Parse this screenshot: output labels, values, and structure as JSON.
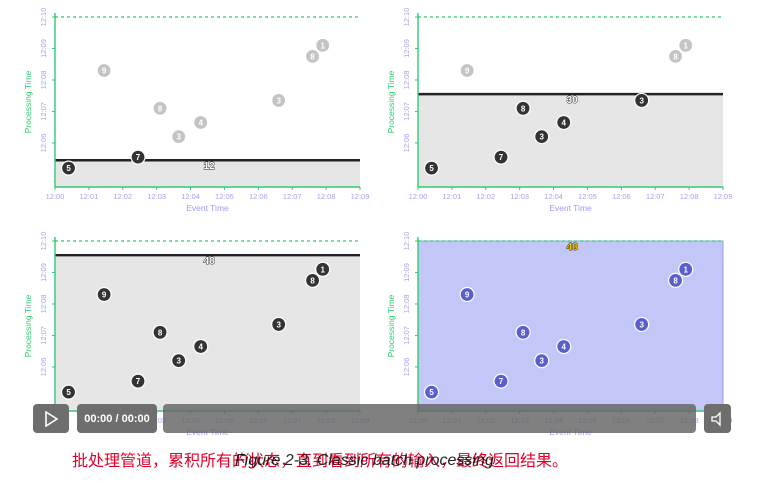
{
  "colors": {
    "axis": "#2ecc71",
    "tick_label": "#a3a3f0",
    "axis_title": "#8a8ae6",
    "x_axis_title": "#9c9cf0",
    "dot_active": "#333333",
    "dot_faded": "#c4c4c4",
    "shade_gray": "#e6e6e6",
    "shade_blue": "#c3c7f8",
    "blue_dot": "#5a5fd0",
    "caption_red": "#e4002b"
  },
  "chart_data": [
    {
      "type": "scatter",
      "xlabel": "Event Time",
      "ylabel": "Processing Time",
      "x_ticks": [
        "12:00",
        "12:01",
        "12:02",
        "12:03",
        "12:04",
        "12:05",
        "12:06",
        "12:07",
        "12:08",
        "12:09"
      ],
      "y_ticks": [
        "12:06",
        "12:07",
        "12:08",
        "12:09",
        "12:10"
      ],
      "shading": "gray",
      "watermark": 5.45,
      "sum_label": "12",
      "sum_x": 4.55,
      "points": [
        {
          "x": 0.4,
          "y": 5.2,
          "value": "5",
          "state": "active"
        },
        {
          "x": 2.45,
          "y": 5.55,
          "value": "7",
          "state": "active"
        },
        {
          "x": 1.45,
          "y": 8.3,
          "value": "9",
          "state": "faded"
        },
        {
          "x": 3.1,
          "y": 7.1,
          "value": "8",
          "state": "faded"
        },
        {
          "x": 3.65,
          "y": 6.2,
          "value": "3",
          "state": "faded"
        },
        {
          "x": 4.3,
          "y": 6.65,
          "value": "4",
          "state": "faded"
        },
        {
          "x": 6.6,
          "y": 7.35,
          "value": "3",
          "state": "faded"
        },
        {
          "x": 7.6,
          "y": 8.75,
          "value": "8",
          "state": "faded"
        },
        {
          "x": 7.9,
          "y": 9.1,
          "value": "1",
          "state": "faded"
        }
      ]
    },
    {
      "type": "scatter",
      "xlabel": "Event Time",
      "ylabel": "Processing Time",
      "x_ticks": [
        "12:00",
        "12:01",
        "12:02",
        "12:03",
        "12:04",
        "12:05",
        "12:06",
        "12:07",
        "12:08",
        "12:09"
      ],
      "y_ticks": [
        "12:06",
        "12:07",
        "12:08",
        "12:09",
        "12:10"
      ],
      "shading": "gray",
      "watermark": 7.55,
      "sum_label": "30",
      "sum_x": 4.55,
      "points": [
        {
          "x": 0.4,
          "y": 5.2,
          "value": "5",
          "state": "active"
        },
        {
          "x": 2.45,
          "y": 5.55,
          "value": "7",
          "state": "active"
        },
        {
          "x": 1.45,
          "y": 8.3,
          "value": "9",
          "state": "faded"
        },
        {
          "x": 3.1,
          "y": 7.1,
          "value": "8",
          "state": "active"
        },
        {
          "x": 3.65,
          "y": 6.2,
          "value": "3",
          "state": "active"
        },
        {
          "x": 4.3,
          "y": 6.65,
          "value": "4",
          "state": "active"
        },
        {
          "x": 6.6,
          "y": 7.35,
          "value": "3",
          "state": "active"
        },
        {
          "x": 7.6,
          "y": 8.75,
          "value": "8",
          "state": "faded"
        },
        {
          "x": 7.9,
          "y": 9.1,
          "value": "1",
          "state": "faded"
        }
      ]
    },
    {
      "type": "scatter",
      "xlabel": "Event Time",
      "ylabel": "Processing Time",
      "x_ticks": [
        "12:00",
        "12:01",
        "12:02",
        "12:03",
        "12:04",
        "12:05",
        "12:06",
        "12:07",
        "12:08",
        "12:09"
      ],
      "y_ticks": [
        "12:06",
        "12:07",
        "12:08",
        "12:09",
        "12:10"
      ],
      "shading": "gray",
      "watermark": 9.55,
      "sum_label": "48",
      "sum_x": 4.55,
      "points": [
        {
          "x": 0.4,
          "y": 5.2,
          "value": "5",
          "state": "active"
        },
        {
          "x": 2.45,
          "y": 5.55,
          "value": "7",
          "state": "active"
        },
        {
          "x": 1.45,
          "y": 8.3,
          "value": "9",
          "state": "active"
        },
        {
          "x": 3.1,
          "y": 7.1,
          "value": "8",
          "state": "active"
        },
        {
          "x": 3.65,
          "y": 6.2,
          "value": "3",
          "state": "active"
        },
        {
          "x": 4.3,
          "y": 6.65,
          "value": "4",
          "state": "active"
        },
        {
          "x": 6.6,
          "y": 7.35,
          "value": "3",
          "state": "active"
        },
        {
          "x": 7.6,
          "y": 8.75,
          "value": "8",
          "state": "active"
        },
        {
          "x": 7.9,
          "y": 9.1,
          "value": "1",
          "state": "active"
        }
      ]
    },
    {
      "type": "scatter",
      "xlabel": "Event Time",
      "ylabel": "Processing Time",
      "x_ticks": [
        "12:00",
        "12:01",
        "12:02",
        "12:03",
        "12:04",
        "12:05",
        "12:06",
        "12:07",
        "12:08",
        "12:09"
      ],
      "y_ticks": [
        "12:06",
        "12:07",
        "12:08",
        "12:09",
        "12:10"
      ],
      "shading": "blue",
      "watermark": null,
      "sum_label": "48",
      "sum_x": 4.55,
      "points": [
        {
          "x": 0.4,
          "y": 5.2,
          "value": "5",
          "state": "blue"
        },
        {
          "x": 2.45,
          "y": 5.55,
          "value": "7",
          "state": "blue"
        },
        {
          "x": 1.45,
          "y": 8.3,
          "value": "9",
          "state": "blue"
        },
        {
          "x": 3.1,
          "y": 7.1,
          "value": "8",
          "state": "blue"
        },
        {
          "x": 3.65,
          "y": 6.2,
          "value": "3",
          "state": "blue"
        },
        {
          "x": 4.3,
          "y": 6.65,
          "value": "4",
          "state": "blue"
        },
        {
          "x": 6.6,
          "y": 7.35,
          "value": "3",
          "state": "blue"
        },
        {
          "x": 7.6,
          "y": 8.75,
          "value": "8",
          "state": "blue"
        },
        {
          "x": 7.9,
          "y": 9.1,
          "value": "1",
          "state": "blue"
        }
      ]
    }
  ],
  "player": {
    "time": "00:00 / 00:00",
    "icons": {
      "play": "play-icon",
      "volume": "volume-icon"
    }
  },
  "caption": {
    "chinese": "批处理管道，累积所有的状态，直到看到所有的输入，最终返回结果。",
    "figure": "Figure 2-3. Classic batch processing"
  }
}
